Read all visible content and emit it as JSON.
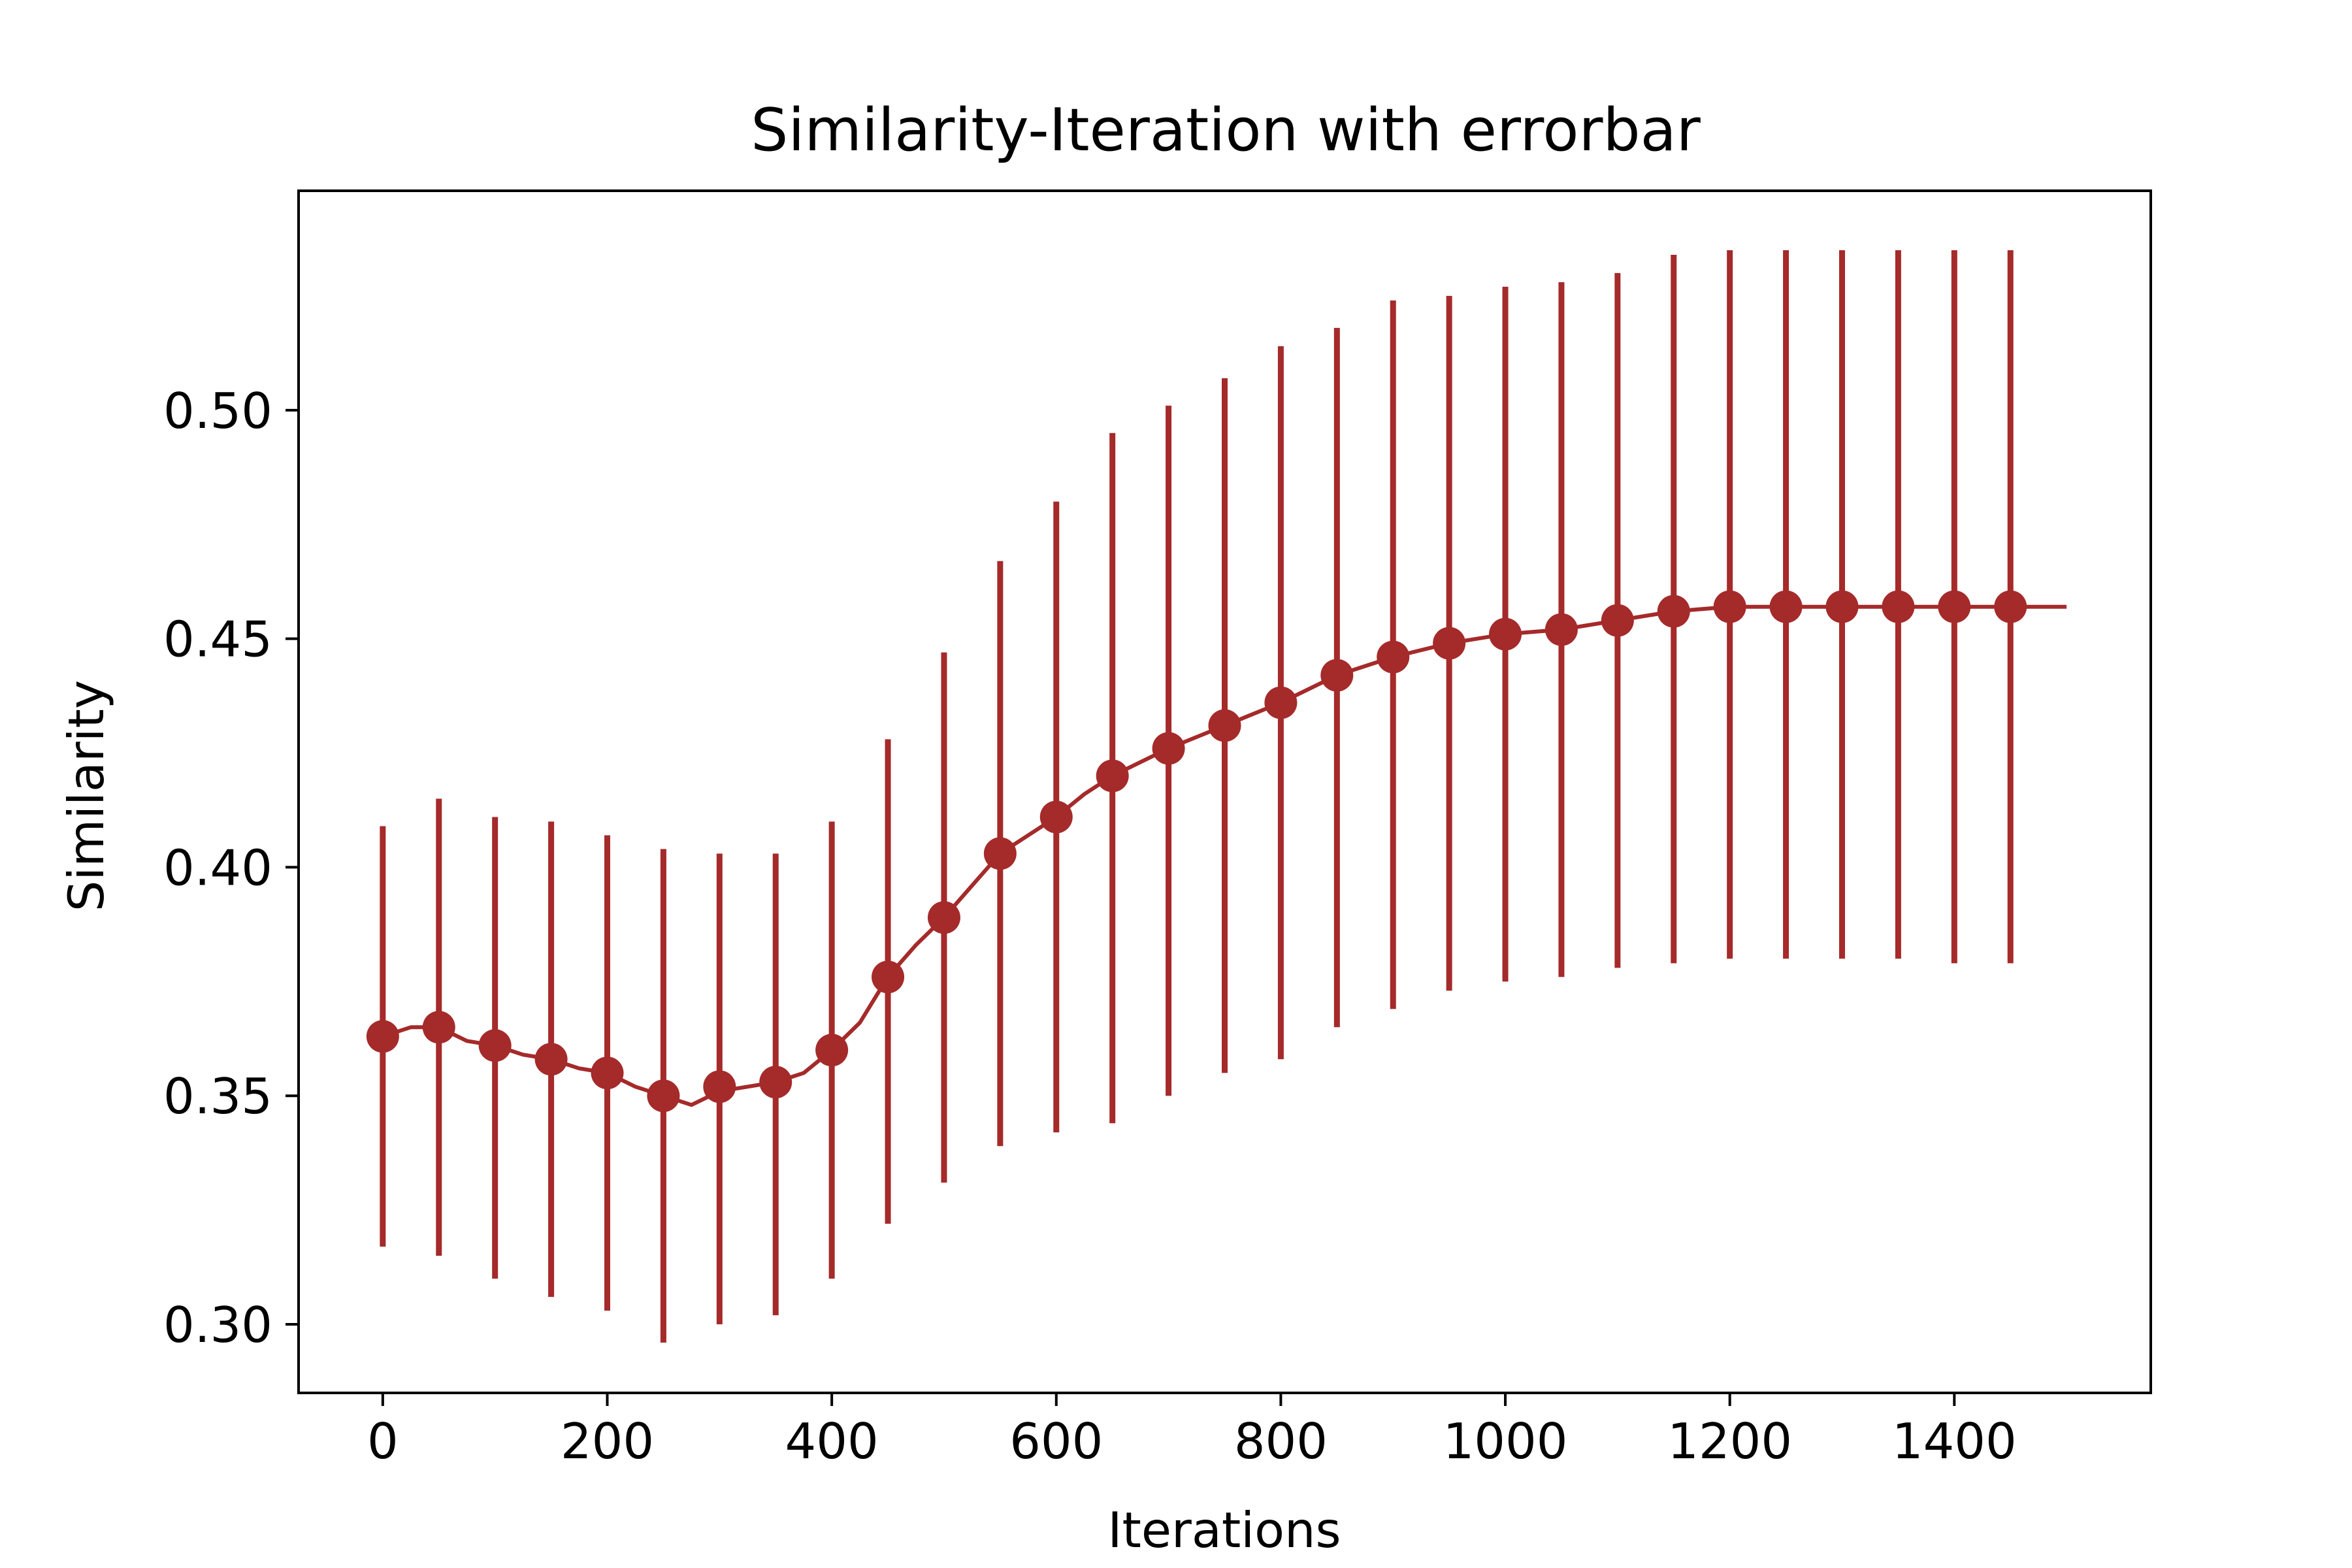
{
  "chart_data": {
    "type": "line",
    "title": "Similarity-Iteration with errorbar",
    "xlabel": "Iterations",
    "ylabel": "Similarity",
    "xlim": [
      -75,
      1575
    ],
    "ylim": [
      0.285,
      0.548
    ],
    "xticks": [
      0,
      200,
      400,
      600,
      800,
      1000,
      1200,
      1400
    ],
    "xtick_labels": [
      "0",
      "200",
      "400",
      "600",
      "800",
      "1000",
      "1200",
      "1400"
    ],
    "yticks": [
      0.3,
      0.35,
      0.4,
      0.45,
      0.5
    ],
    "ytick_labels": [
      "0.30",
      "0.35",
      "0.40",
      "0.45",
      "0.50"
    ],
    "grid": false,
    "legend": "none",
    "color": "#a52a2a",
    "series": [
      {
        "line_x": [
          0,
          25,
          50,
          75,
          100,
          125,
          150,
          175,
          200,
          225,
          250,
          275,
          300,
          325,
          350,
          375,
          400,
          425,
          450,
          475,
          500,
          525,
          550,
          575,
          600,
          625,
          650,
          700,
          750,
          800,
          850,
          900,
          950,
          1000,
          1050,
          1100,
          1150,
          1200,
          1250,
          1300,
          1350,
          1400,
          1450,
          1500
        ],
        "line_y": [
          0.363,
          0.365,
          0.365,
          0.362,
          0.361,
          0.359,
          0.358,
          0.356,
          0.355,
          0.352,
          0.35,
          0.348,
          0.351,
          0.352,
          0.353,
          0.355,
          0.36,
          0.366,
          0.376,
          0.383,
          0.389,
          0.396,
          0.403,
          0.407,
          0.411,
          0.416,
          0.42,
          0.426,
          0.431,
          0.436,
          0.442,
          0.446,
          0.449,
          0.451,
          0.452,
          0.454,
          0.456,
          0.457,
          0.457,
          0.457,
          0.457,
          0.457,
          0.457,
          0.457
        ],
        "x": [
          0,
          50,
          100,
          150,
          200,
          250,
          300,
          350,
          400,
          450,
          500,
          550,
          600,
          650,
          700,
          750,
          800,
          850,
          900,
          950,
          1000,
          1050,
          1100,
          1150,
          1200,
          1250,
          1300,
          1350,
          1400,
          1450
        ],
        "y": [
          0.363,
          0.365,
          0.361,
          0.358,
          0.355,
          0.35,
          0.352,
          0.353,
          0.36,
          0.376,
          0.389,
          0.403,
          0.411,
          0.42,
          0.426,
          0.431,
          0.436,
          0.442,
          0.446,
          0.449,
          0.451,
          0.452,
          0.454,
          0.456,
          0.457,
          0.457,
          0.457,
          0.457,
          0.457,
          0.457
        ],
        "err_low": [
          0.317,
          0.315,
          0.31,
          0.306,
          0.303,
          0.296,
          0.3,
          0.302,
          0.31,
          0.322,
          0.331,
          0.339,
          0.342,
          0.344,
          0.35,
          0.355,
          0.358,
          0.365,
          0.369,
          0.373,
          0.375,
          0.376,
          0.378,
          0.379,
          0.38,
          0.38,
          0.38,
          0.38,
          0.379,
          0.379
        ],
        "err_high": [
          0.409,
          0.415,
          0.411,
          0.41,
          0.407,
          0.404,
          0.403,
          0.403,
          0.41,
          0.428,
          0.447,
          0.467,
          0.48,
          0.495,
          0.501,
          0.507,
          0.514,
          0.518,
          0.524,
          0.525,
          0.527,
          0.528,
          0.53,
          0.534,
          0.535,
          0.535,
          0.535,
          0.535,
          0.535,
          0.535
        ]
      }
    ]
  }
}
